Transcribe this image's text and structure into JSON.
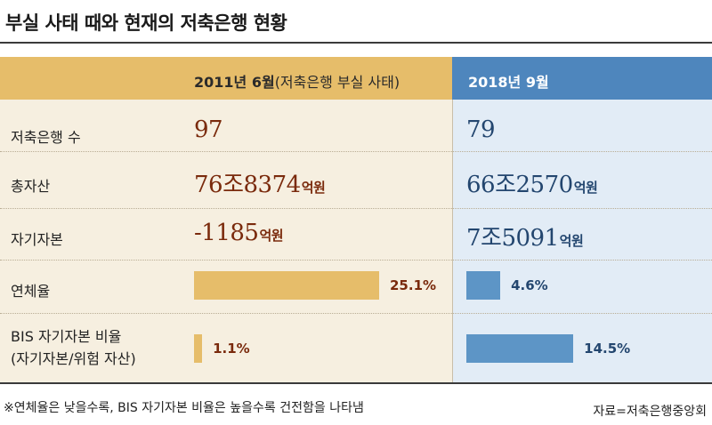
{
  "title": "부실 사태 때와 현재의 저축은행 현황",
  "columns": {
    "left": {
      "label": "2011년 6월",
      "note": "(저축은행 부실 사태)"
    },
    "right": {
      "label": "2018년 9월"
    }
  },
  "rows": [
    {
      "label": "저축은행 수",
      "left": {
        "num": "97",
        "unit": ""
      },
      "right": {
        "num": "79",
        "unit": ""
      }
    },
    {
      "label": "총자산",
      "left": {
        "num": "76조8374",
        "unit": "억원"
      },
      "right": {
        "num": "66조2570",
        "unit": "억원"
      }
    },
    {
      "label": "자기자본",
      "left": {
        "num": "-1185",
        "unit": "억원"
      },
      "right": {
        "num": "7조5091",
        "unit": "억원"
      }
    }
  ],
  "delinquency": {
    "label": "연체율",
    "left_text": "25.1%",
    "right_text": "4.6%"
  },
  "bis": {
    "label_line1": "BIS 자기자본 비율",
    "label_line2": "(자기자본/위험 자산)",
    "left_text": "1.1%",
    "right_text": "14.5%"
  },
  "footnote": "※연체율은 낮을수록, BIS 자기자본 비율은 높을수록 건전함을 나타냄",
  "source": "자료=저축은행중앙회",
  "colors": {
    "left_bar": "#e6bd6a",
    "right_bar": "#5d95c6",
    "left_value": "#7a2a0c",
    "right_value": "#23466f"
  },
  "chart_data": {
    "type": "bar",
    "categories": [
      "연체율",
      "BIS 자기자본 비율"
    ],
    "series": [
      {
        "name": "2011년 6월",
        "values": [
          25.1,
          1.1
        ]
      },
      {
        "name": "2018년 9월",
        "values": [
          4.6,
          14.5
        ]
      }
    ],
    "title": "부실 사태 때와 현재의 저축은행 현황"
  }
}
